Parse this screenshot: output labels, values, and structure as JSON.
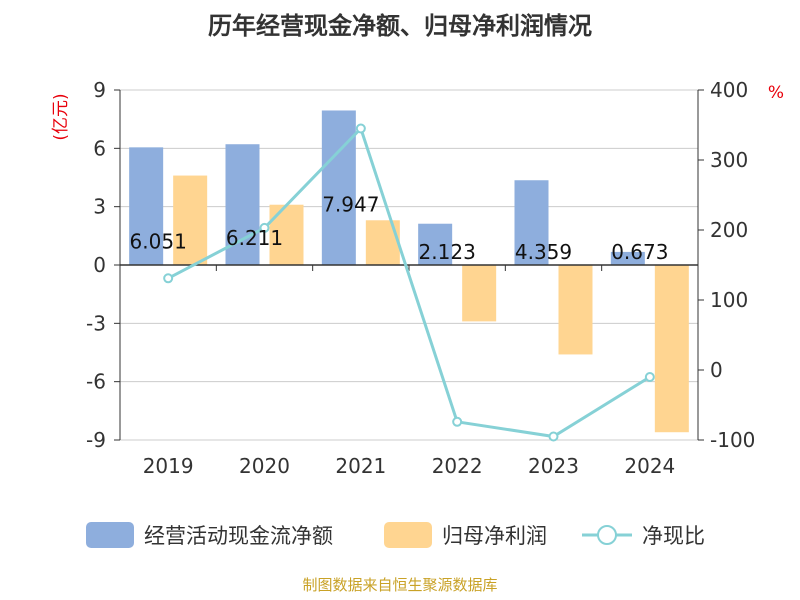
{
  "title": "历年经营现金净额、归母净利润情况",
  "source": "制图数据来自恒生聚源数据库",
  "colors": {
    "cashflow": "#8eaedd",
    "netprofit": "#ffd591",
    "ratio": "#86d1d6",
    "unit": "#e8000b",
    "source": "#c9a227"
  },
  "chart_data": {
    "type": "bar+line",
    "categories": [
      "2019",
      "2020",
      "2021",
      "2022",
      "2023",
      "2024"
    ],
    "left_axis": {
      "unit": "(亿元)",
      "ylim": [
        -9,
        9
      ],
      "ticks": [
        "9",
        "6",
        "3",
        "0",
        "-3",
        "-6",
        "-9"
      ]
    },
    "right_axis": {
      "unit": "%",
      "ylim": [
        -100,
        400
      ],
      "ticks": [
        "400",
        "300",
        "200",
        "100",
        "0",
        "-100"
      ]
    },
    "series": [
      {
        "name": "经营活动现金流净额",
        "type": "bar",
        "axis": "left",
        "values": [
          6.051,
          6.211,
          7.947,
          2.123,
          4.359,
          0.673
        ],
        "labels": [
          "6.051",
          "6.211",
          "7.947",
          "2.123",
          "4.359",
          "0.673"
        ]
      },
      {
        "name": "归母净利润",
        "type": "bar",
        "axis": "left",
        "values": [
          4.6,
          3.1,
          2.3,
          -2.9,
          -4.6,
          -8.6
        ]
      },
      {
        "name": "净现比",
        "type": "line",
        "axis": "right",
        "values": [
          131,
          203,
          345,
          -74,
          -95,
          -10
        ]
      }
    ],
    "legend": [
      "经营活动现金流净额",
      "归母净利润",
      "净现比"
    ],
    "legend_position": "bottom"
  }
}
